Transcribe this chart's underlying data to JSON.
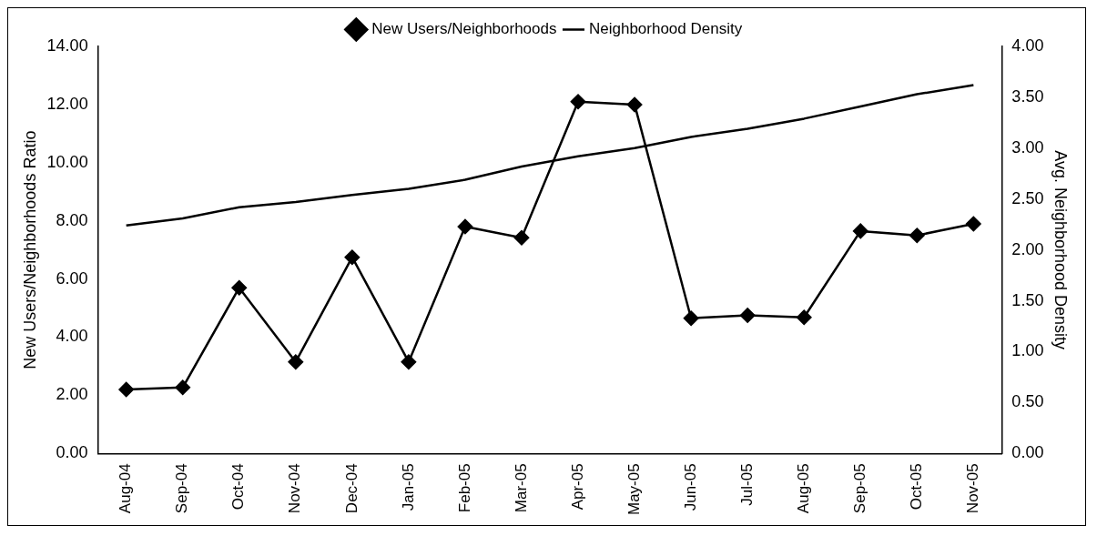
{
  "chart_data": {
    "type": "line",
    "ylabel": "New Users/Neighborhoods Ratio",
    "y2label": "Avg. Neighborhood Density",
    "categories": [
      "Aug-04",
      "Sep-04",
      "Oct-04",
      "Nov-04",
      "Dec-04",
      "Jan-05",
      "Feb-05",
      "Mar-05",
      "Apr-05",
      "May-05",
      "Jun-05",
      "Jul-05",
      "Aug-05",
      "Sep-05",
      "Oct-05",
      "Nov-05"
    ],
    "series": [
      {
        "name": "New Users/Neighborhoods",
        "color": "#000000",
        "marker": "diamond",
        "values": [
          2.2,
          2.27,
          5.7,
          3.15,
          6.75,
          3.15,
          7.8,
          7.42,
          12.1,
          12.0,
          4.65,
          4.75,
          4.68,
          7.65,
          7.5,
          7.9
        ]
      },
      {
        "name": "Neighborhood Density",
        "color": "#000000",
        "marker": "none",
        "axis": "y2",
        "values": [
          2.24,
          2.31,
          2.42,
          2.47,
          2.54,
          2.6,
          2.69,
          2.82,
          2.92,
          3.0,
          3.11,
          3.19,
          3.29,
          3.41,
          3.53,
          3.62
        ]
      }
    ],
    "ylim": [
      0,
      14
    ],
    "yticks": [
      {
        "value": 0,
        "label": "0.00"
      },
      {
        "value": 2,
        "label": "2.00"
      },
      {
        "value": 4,
        "label": "4.00"
      },
      {
        "value": 6,
        "label": "6.00"
      },
      {
        "value": 8,
        "label": "8.00"
      },
      {
        "value": 10,
        "label": "10.00"
      },
      {
        "value": 12,
        "label": "12.00"
      },
      {
        "value": 14,
        "label": "14.00"
      }
    ],
    "y2lim": [
      0,
      4
    ],
    "y2ticks": [
      {
        "value": 0,
        "label": "0.00"
      },
      {
        "value": 0.5,
        "label": "0.50"
      },
      {
        "value": 1,
        "label": "1.00"
      },
      {
        "value": 1.5,
        "label": "1.50"
      },
      {
        "value": 2,
        "label": "2.00"
      },
      {
        "value": 2.5,
        "label": "2.50"
      },
      {
        "value": 3,
        "label": "3.00"
      },
      {
        "value": 3.5,
        "label": "3.50"
      },
      {
        "value": 4,
        "label": "4.00"
      }
    ],
    "grid": false,
    "legend": "top",
    "line_style": "solid"
  }
}
